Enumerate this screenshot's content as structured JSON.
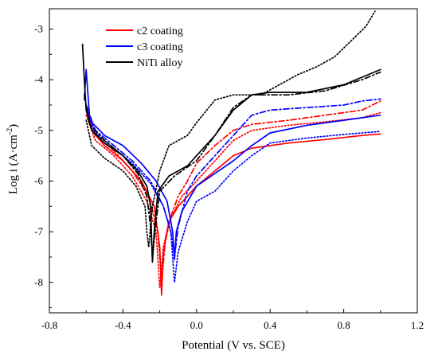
{
  "chart_data": {
    "type": "line",
    "xlabel": "Potential (V vs. SCE)",
    "ylabel": "Log i (A·cm",
    "ylabel_sup": "-2",
    "ylabel_close": ")",
    "xlim": [
      -0.8,
      1.2
    ],
    "ylim": [
      -8.6,
      -2.6
    ],
    "x_ticks": [
      {
        "v": -0.8,
        "label": "-0.8"
      },
      {
        "v": -0.4,
        "label": "-0.4"
      },
      {
        "v": 0.0,
        "label": "0.0"
      },
      {
        "v": 0.4,
        "label": "0.4"
      },
      {
        "v": 0.8,
        "label": "0.8"
      },
      {
        "v": 1.2,
        "label": "1.2"
      }
    ],
    "y_ticks": [
      {
        "v": -3,
        "label": "-3"
      },
      {
        "v": -4,
        "label": "-4"
      },
      {
        "v": -5,
        "label": "-5"
      },
      {
        "v": -6,
        "label": "-6"
      },
      {
        "v": -7,
        "label": "-7"
      },
      {
        "v": -8,
        "label": "-8"
      }
    ],
    "grid": false,
    "legend_position": "top-left",
    "legend": [
      {
        "name": "c2 coating",
        "color": "#ff0000"
      },
      {
        "name": "c3 coating",
        "color": "#0000ff"
      },
      {
        "name": "NiTi alloy",
        "color": "#000000"
      }
    ],
    "series": [
      {
        "name": "c2 coating",
        "color": "#ff0000",
        "dash": "solid",
        "points": [
          [
            -0.6,
            -4.5
          ],
          [
            -0.57,
            -5.0
          ],
          [
            -0.5,
            -5.3
          ],
          [
            -0.4,
            -5.6
          ],
          [
            -0.3,
            -6.0
          ],
          [
            -0.23,
            -6.5
          ],
          [
            -0.2,
            -7.3
          ],
          [
            -0.19,
            -8.25
          ],
          [
            -0.18,
            -7.4
          ],
          [
            -0.15,
            -6.8
          ],
          [
            -0.1,
            -6.5
          ],
          [
            0.0,
            -6.1
          ],
          [
            0.1,
            -5.8
          ],
          [
            0.2,
            -5.5
          ],
          [
            0.3,
            -5.35
          ],
          [
            0.5,
            -5.25
          ],
          [
            0.7,
            -5.18
          ],
          [
            0.9,
            -5.1
          ],
          [
            1.0,
            -5.07
          ]
        ]
      },
      {
        "name": "c2 coating",
        "color": "#ff0000",
        "dash": "dashdot",
        "points": [
          [
            -0.6,
            -4.6
          ],
          [
            -0.55,
            -5.1
          ],
          [
            -0.45,
            -5.4
          ],
          [
            -0.35,
            -5.8
          ],
          [
            -0.26,
            -6.3
          ],
          [
            -0.21,
            -7.0
          ],
          [
            -0.19,
            -8.0
          ],
          [
            -0.17,
            -7.2
          ],
          [
            -0.14,
            -6.7
          ],
          [
            -0.1,
            -6.3
          ],
          [
            -0.05,
            -6.0
          ],
          [
            0.0,
            -5.65
          ],
          [
            0.1,
            -5.3
          ],
          [
            0.2,
            -5.0
          ],
          [
            0.3,
            -4.88
          ],
          [
            0.5,
            -4.8
          ],
          [
            0.7,
            -4.7
          ],
          [
            0.9,
            -4.6
          ],
          [
            1.0,
            -4.42
          ]
        ]
      },
      {
        "name": "c2 coating",
        "color": "#ff0000",
        "dash": "dotted",
        "points": [
          [
            -0.6,
            -4.7
          ],
          [
            -0.55,
            -5.2
          ],
          [
            -0.45,
            -5.5
          ],
          [
            -0.35,
            -5.9
          ],
          [
            -0.27,
            -6.4
          ],
          [
            -0.22,
            -7.0
          ],
          [
            -0.2,
            -8.1
          ],
          [
            -0.18,
            -7.3
          ],
          [
            -0.15,
            -6.8
          ],
          [
            -0.08,
            -6.3
          ],
          [
            0.0,
            -6.0
          ],
          [
            0.1,
            -5.6
          ],
          [
            0.2,
            -5.2
          ],
          [
            0.3,
            -5.0
          ],
          [
            0.5,
            -4.9
          ],
          [
            0.7,
            -4.83
          ],
          [
            0.9,
            -4.75
          ],
          [
            1.0,
            -4.65
          ]
        ]
      },
      {
        "name": "c3 coating",
        "color": "#0000ff",
        "dash": "solid",
        "points": [
          [
            -0.61,
            -4.4
          ],
          [
            -0.6,
            -3.8
          ],
          [
            -0.58,
            -4.8
          ],
          [
            -0.5,
            -5.1
          ],
          [
            -0.4,
            -5.3
          ],
          [
            -0.3,
            -5.65
          ],
          [
            -0.22,
            -6.0
          ],
          [
            -0.16,
            -6.4
          ],
          [
            -0.13,
            -7.0
          ],
          [
            -0.12,
            -7.55
          ],
          [
            -0.11,
            -7.0
          ],
          [
            -0.08,
            -6.6
          ],
          [
            0.0,
            -6.1
          ],
          [
            0.1,
            -5.85
          ],
          [
            0.2,
            -5.6
          ],
          [
            0.3,
            -5.3
          ],
          [
            0.4,
            -5.05
          ],
          [
            0.6,
            -4.9
          ],
          [
            0.8,
            -4.8
          ],
          [
            1.0,
            -4.7
          ]
        ]
      },
      {
        "name": "c3 coating",
        "color": "#0000ff",
        "dash": "dashdot",
        "points": [
          [
            -0.6,
            -4.5
          ],
          [
            -0.55,
            -5.0
          ],
          [
            -0.45,
            -5.3
          ],
          [
            -0.35,
            -5.6
          ],
          [
            -0.25,
            -6.0
          ],
          [
            -0.18,
            -6.5
          ],
          [
            -0.14,
            -7.0
          ],
          [
            -0.12,
            -7.5
          ],
          [
            -0.1,
            -6.9
          ],
          [
            -0.05,
            -6.2
          ],
          [
            0.0,
            -5.9
          ],
          [
            0.1,
            -5.5
          ],
          [
            0.2,
            -5.1
          ],
          [
            0.3,
            -4.7
          ],
          [
            0.4,
            -4.6
          ],
          [
            0.6,
            -4.55
          ],
          [
            0.8,
            -4.5
          ],
          [
            0.9,
            -4.42
          ],
          [
            1.0,
            -4.38
          ]
        ]
      },
      {
        "name": "c3 coating",
        "color": "#0000ff",
        "dash": "dotted",
        "points": [
          [
            -0.6,
            -4.6
          ],
          [
            -0.55,
            -5.05
          ],
          [
            -0.45,
            -5.35
          ],
          [
            -0.35,
            -5.65
          ],
          [
            -0.25,
            -6.05
          ],
          [
            -0.18,
            -6.5
          ],
          [
            -0.14,
            -7.0
          ],
          [
            -0.12,
            -8.0
          ],
          [
            -0.1,
            -7.4
          ],
          [
            -0.05,
            -6.8
          ],
          [
            0.0,
            -6.4
          ],
          [
            0.1,
            -6.2
          ],
          [
            0.2,
            -5.8
          ],
          [
            0.3,
            -5.5
          ],
          [
            0.4,
            -5.25
          ],
          [
            0.6,
            -5.15
          ],
          [
            0.8,
            -5.08
          ],
          [
            1.0,
            -5.02
          ]
        ]
      },
      {
        "name": "NiTi alloy",
        "color": "#000000",
        "dash": "solid",
        "points": [
          [
            -0.62,
            -3.3
          ],
          [
            -0.61,
            -4.0
          ],
          [
            -0.6,
            -4.6
          ],
          [
            -0.57,
            -5.0
          ],
          [
            -0.5,
            -5.25
          ],
          [
            -0.4,
            -5.5
          ],
          [
            -0.32,
            -5.8
          ],
          [
            -0.27,
            -6.1
          ],
          [
            -0.25,
            -6.5
          ],
          [
            -0.24,
            -7.6
          ],
          [
            -0.23,
            -7.0
          ],
          [
            -0.21,
            -6.2
          ],
          [
            -0.15,
            -5.9
          ],
          [
            -0.05,
            -5.7
          ],
          [
            0.0,
            -5.5
          ],
          [
            0.1,
            -5.1
          ],
          [
            0.2,
            -4.6
          ],
          [
            0.3,
            -4.3
          ],
          [
            0.4,
            -4.25
          ],
          [
            0.6,
            -4.25
          ],
          [
            0.8,
            -4.1
          ],
          [
            0.9,
            -3.95
          ],
          [
            1.0,
            -3.8
          ]
        ]
      },
      {
        "name": "NiTi alloy",
        "color": "#000000",
        "dash": "dashdot",
        "points": [
          [
            -0.61,
            -4.3
          ],
          [
            -0.58,
            -4.9
          ],
          [
            -0.5,
            -5.2
          ],
          [
            -0.4,
            -5.5
          ],
          [
            -0.32,
            -5.85
          ],
          [
            -0.27,
            -6.3
          ],
          [
            -0.25,
            -6.9
          ],
          [
            -0.24,
            -7.5
          ],
          [
            -0.22,
            -6.8
          ],
          [
            -0.2,
            -6.2
          ],
          [
            -0.12,
            -5.9
          ],
          [
            0.0,
            -5.6
          ],
          [
            0.1,
            -5.1
          ],
          [
            0.2,
            -4.55
          ],
          [
            0.3,
            -4.3
          ],
          [
            0.5,
            -4.3
          ],
          [
            0.7,
            -4.22
          ],
          [
            0.9,
            -4.0
          ],
          [
            1.0,
            -3.85
          ]
        ]
      },
      {
        "name": "NiTi alloy",
        "color": "#000000",
        "dash": "dotted",
        "points": [
          [
            -0.6,
            -4.8
          ],
          [
            -0.57,
            -5.3
          ],
          [
            -0.5,
            -5.55
          ],
          [
            -0.4,
            -5.8
          ],
          [
            -0.33,
            -6.1
          ],
          [
            -0.28,
            -6.5
          ],
          [
            -0.27,
            -7.0
          ],
          [
            -0.26,
            -7.3
          ],
          [
            -0.24,
            -6.5
          ],
          [
            -0.2,
            -5.8
          ],
          [
            -0.15,
            -5.3
          ],
          [
            -0.05,
            -5.1
          ],
          [
            0.0,
            -4.85
          ],
          [
            0.1,
            -4.4
          ],
          [
            0.2,
            -4.3
          ],
          [
            0.35,
            -4.3
          ],
          [
            0.45,
            -4.1
          ],
          [
            0.55,
            -3.9
          ],
          [
            0.65,
            -3.75
          ],
          [
            0.75,
            -3.55
          ],
          [
            0.85,
            -3.2
          ],
          [
            0.92,
            -2.95
          ],
          [
            0.97,
            -2.65
          ]
        ]
      }
    ]
  }
}
